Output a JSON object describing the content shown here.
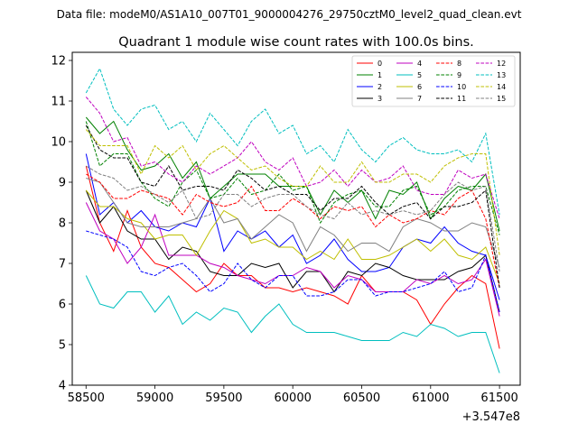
{
  "header": {
    "data_file": "Data file: modeM0/AS1A10_007T01_9000004276_29750cztM0_level2_quad_clean.evt"
  },
  "chart_data": {
    "type": "line",
    "title": "Quadrant 1 module wise count rates with 100.0s bins.",
    "xlabel": "",
    "ylabel": "",
    "x_offset_label": "+3.547e8",
    "xlim": [
      58400,
      61650
    ],
    "ylim": [
      4.0,
      12.2
    ],
    "x_ticks": [
      58500,
      59000,
      59500,
      60000,
      60500,
      61000,
      61500
    ],
    "x_tick_labels": [
      "58500",
      "59000",
      "59500",
      "60000",
      "60500",
      "61000",
      "61500"
    ],
    "y_ticks": [
      4,
      5,
      6,
      7,
      8,
      9,
      10,
      11,
      12
    ],
    "y_tick_labels": [
      "4",
      "5",
      "6",
      "7",
      "8",
      "9",
      "10",
      "11",
      "12"
    ],
    "grid": false,
    "legend_placement": "top-right",
    "legend_columns": 4,
    "x": [
      58500,
      58600,
      58700,
      58800,
      58900,
      59000,
      59100,
      59200,
      59300,
      59400,
      59500,
      59600,
      59700,
      59800,
      59900,
      60000,
      60100,
      60200,
      60300,
      60400,
      60500,
      60600,
      60700,
      60800,
      60900,
      61000,
      61100,
      61200,
      61300,
      61400,
      61500
    ],
    "series": [
      {
        "name": "0",
        "color": "#ff0000",
        "dash": "solid",
        "values": [
          9.4,
          8.0,
          7.3,
          8.3,
          7.4,
          7.0,
          6.9,
          6.6,
          6.3,
          6.5,
          7.0,
          6.7,
          6.7,
          6.4,
          6.4,
          6.3,
          6.4,
          6.3,
          6.2,
          6.0,
          6.7,
          6.3,
          6.3,
          6.3,
          6.1,
          5.5,
          6.0,
          6.4,
          6.7,
          6.5,
          4.9
        ]
      },
      {
        "name": "1",
        "color": "#008000",
        "dash": "solid",
        "values": [
          10.6,
          10.2,
          10.5,
          9.8,
          9.3,
          9.4,
          9.7,
          9.1,
          9.5,
          8.6,
          8.9,
          9.2,
          9.2,
          9.2,
          8.9,
          8.9,
          8.9,
          8.2,
          8.8,
          8.5,
          8.8,
          8.1,
          8.8,
          8.7,
          9.0,
          8.1,
          8.6,
          8.9,
          8.8,
          9.2,
          7.8
        ]
      },
      {
        "name": "2",
        "color": "#0000ff",
        "dash": "solid",
        "values": [
          9.7,
          8.2,
          8.5,
          8.0,
          8.3,
          7.9,
          7.8,
          8.0,
          7.9,
          8.6,
          7.3,
          7.8,
          7.6,
          7.8,
          7.4,
          7.7,
          7.0,
          7.2,
          7.6,
          7.1,
          6.8,
          6.8,
          6.9,
          7.4,
          7.6,
          7.5,
          7.9,
          7.5,
          7.3,
          7.2,
          6.1
        ]
      },
      {
        "name": "3",
        "color": "#000000",
        "dash": "solid",
        "values": [
          8.8,
          8.0,
          8.4,
          7.8,
          7.6,
          7.6,
          7.1,
          7.4,
          7.3,
          6.8,
          6.7,
          6.7,
          7.0,
          6.9,
          7.0,
          6.4,
          6.8,
          6.8,
          6.3,
          6.8,
          6.7,
          7.0,
          6.9,
          6.7,
          6.6,
          6.6,
          6.6,
          6.8,
          6.9,
          7.2,
          5.8
        ]
      },
      {
        "name": "4",
        "color": "#bf00bf",
        "dash": "solid",
        "values": [
          8.5,
          7.8,
          7.6,
          7.0,
          7.4,
          8.2,
          7.2,
          7.2,
          7.2,
          7.0,
          6.9,
          6.7,
          6.6,
          6.5,
          6.7,
          6.7,
          6.9,
          6.8,
          6.4,
          6.7,
          6.6,
          6.3,
          6.3,
          6.3,
          6.6,
          6.5,
          6.7,
          6.5,
          6.6,
          7.1,
          5.7
        ]
      },
      {
        "name": "5",
        "color": "#00bfbf",
        "dash": "solid",
        "values": [
          6.7,
          6.0,
          5.9,
          6.3,
          6.3,
          5.8,
          6.2,
          5.5,
          5.8,
          5.6,
          5.9,
          5.8,
          5.3,
          5.7,
          6.0,
          5.5,
          5.3,
          5.3,
          5.3,
          5.2,
          5.1,
          5.1,
          5.1,
          5.3,
          5.2,
          5.5,
          5.4,
          5.2,
          5.3,
          5.3,
          4.3
        ]
      },
      {
        "name": "6",
        "color": "#bfbf00",
        "dash": "solid",
        "values": [
          8.8,
          8.4,
          8.4,
          8.1,
          8.0,
          7.6,
          7.7,
          7.7,
          7.2,
          7.8,
          8.3,
          8.1,
          7.5,
          7.6,
          7.4,
          7.4,
          7.1,
          7.3,
          7.1,
          7.6,
          7.1,
          7.1,
          7.2,
          7.4,
          7.6,
          7.3,
          7.6,
          7.2,
          7.1,
          7.4,
          6.5
        ]
      },
      {
        "name": "7",
        "color": "#808080",
        "dash": "solid",
        "values": [
          9.1,
          9.0,
          8.5,
          8.0,
          7.9,
          7.9,
          7.9,
          8.0,
          8.1,
          8.6,
          8.0,
          8.1,
          7.6,
          7.9,
          8.2,
          8.0,
          7.3,
          7.9,
          7.7,
          7.3,
          7.5,
          7.5,
          7.3,
          7.9,
          8.1,
          8.0,
          7.8,
          7.8,
          8.0,
          7.9,
          6.9
        ]
      },
      {
        "name": "8",
        "color": "#ff0000",
        "dash": "dashed",
        "values": [
          9.2,
          9.0,
          8.6,
          8.6,
          8.8,
          8.7,
          8.6,
          8.2,
          8.7,
          8.5,
          8.4,
          8.5,
          8.9,
          8.3,
          8.3,
          8.6,
          8.4,
          8.1,
          8.4,
          8.3,
          8.4,
          7.9,
          8.2,
          8.0,
          8.1,
          8.3,
          8.2,
          8.6,
          8.8,
          8.1,
          6.4
        ]
      },
      {
        "name": "9",
        "color": "#008000",
        "dash": "dashed",
        "values": [
          10.5,
          9.4,
          9.7,
          9.7,
          9.0,
          8.6,
          8.4,
          9.0,
          9.3,
          8.6,
          8.7,
          9.1,
          8.7,
          8.8,
          9.2,
          8.8,
          8.9,
          8.0,
          8.5,
          8.7,
          8.8,
          8.4,
          8.4,
          8.8,
          8.9,
          8.2,
          8.4,
          8.8,
          8.9,
          8.9,
          7.7
        ]
      },
      {
        "name": "10",
        "color": "#0000ff",
        "dash": "dashed",
        "values": [
          7.8,
          7.7,
          7.6,
          7.4,
          6.8,
          6.7,
          6.9,
          7.0,
          6.7,
          6.3,
          6.5,
          7.0,
          6.6,
          6.4,
          6.7,
          6.7,
          6.2,
          6.2,
          6.3,
          6.6,
          6.6,
          6.2,
          6.3,
          6.3,
          6.4,
          6.5,
          6.8,
          6.3,
          6.4,
          7.2,
          5.8
        ]
      },
      {
        "name": "11",
        "color": "#000000",
        "dash": "dashed",
        "values": [
          10.4,
          9.8,
          9.6,
          9.6,
          9.0,
          8.9,
          9.4,
          8.8,
          8.9,
          8.9,
          8.8,
          9.3,
          9.1,
          8.8,
          8.9,
          8.7,
          8.7,
          8.3,
          8.6,
          8.6,
          8.9,
          8.5,
          8.2,
          8.4,
          8.5,
          8.1,
          8.4,
          8.4,
          8.5,
          8.8,
          6.4
        ]
      },
      {
        "name": "12",
        "color": "#bf00bf",
        "dash": "dashed",
        "values": [
          11.1,
          10.7,
          10.0,
          10.1,
          9.4,
          9.5,
          9.2,
          9.0,
          9.4,
          9.2,
          9.4,
          9.6,
          10.0,
          9.5,
          9.3,
          9.6,
          8.9,
          9.0,
          9.3,
          8.9,
          9.3,
          9.0,
          9.1,
          9.4,
          8.8,
          8.7,
          8.7,
          9.3,
          9.1,
          9.2,
          8.1
        ]
      },
      {
        "name": "13",
        "color": "#00bfbf",
        "dash": "dashed",
        "values": [
          11.2,
          11.8,
          10.8,
          10.4,
          10.8,
          10.9,
          10.3,
          10.5,
          10.0,
          10.7,
          10.3,
          9.9,
          10.5,
          10.8,
          10.2,
          10.4,
          9.7,
          9.9,
          9.5,
          10.3,
          9.8,
          9.5,
          9.9,
          10.1,
          9.8,
          9.7,
          9.7,
          9.8,
          9.5,
          10.2,
          8.2
        ]
      },
      {
        "name": "14",
        "color": "#bfbf00",
        "dash": "dashed",
        "values": [
          10.3,
          9.9,
          9.9,
          9.9,
          9.2,
          9.9,
          9.6,
          9.9,
          9.3,
          9.7,
          9.9,
          9.6,
          9.3,
          9.4,
          9.1,
          8.9,
          8.9,
          9.4,
          9.0,
          9.0,
          9.5,
          9.0,
          9.0,
          9.2,
          9.2,
          9.0,
          9.4,
          9.6,
          9.7,
          9.7,
          7.2
        ]
      },
      {
        "name": "15",
        "color": "#808080",
        "dash": "dashed",
        "values": [
          9.4,
          9.2,
          9.1,
          8.8,
          8.9,
          8.7,
          8.5,
          8.8,
          8.1,
          8.2,
          8.7,
          8.7,
          8.4,
          8.6,
          8.7,
          8.7,
          8.4,
          8.2,
          8.1,
          8.5,
          8.2,
          8.3,
          8.2,
          8.3,
          8.2,
          8.3,
          8.7,
          9.0,
          8.8,
          8.9,
          6.8
        ]
      }
    ]
  }
}
